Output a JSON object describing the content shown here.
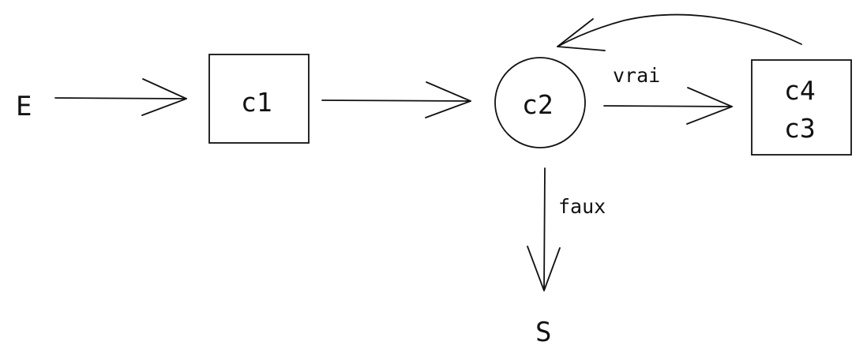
{
  "diagram": {
    "entry": "E",
    "exit": "S",
    "nodes": {
      "c1": "c1",
      "c2": "c2",
      "box_line1": "c4",
      "box_line2": "c3"
    },
    "edges": {
      "true_label": "vrai",
      "false_label": "faux"
    }
  },
  "colors": {
    "ink": "#111111",
    "background": "#ffffff"
  }
}
